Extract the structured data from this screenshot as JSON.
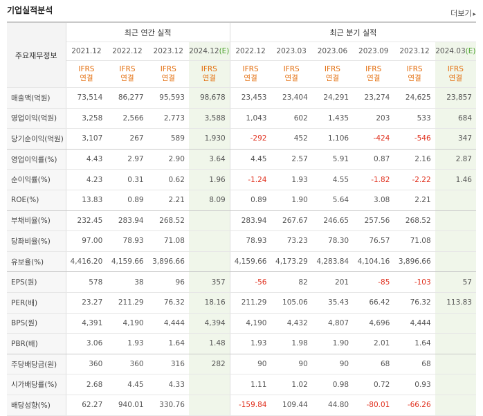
{
  "header": {
    "title": "기업실적분석",
    "more_label": "더보기",
    "more_arrow": "▸"
  },
  "table": {
    "label_head": "주요재무정보",
    "annual_group": "최근 연간 실적",
    "quarter_group": "최근 분기 실적",
    "periods": [
      {
        "label": "2021.12",
        "est": false
      },
      {
        "label": "2022.12",
        "est": false
      },
      {
        "label": "2023.12",
        "est": false
      },
      {
        "label": "2024.12",
        "est": true,
        "est_mark": "(E)"
      },
      {
        "label": "2022.12",
        "est": false
      },
      {
        "label": "2023.03",
        "est": false
      },
      {
        "label": "2023.06",
        "est": false
      },
      {
        "label": "2023.09",
        "est": false
      },
      {
        "label": "2023.12",
        "est": false
      },
      {
        "label": "2024.03",
        "est": true,
        "est_mark": "(E)"
      }
    ],
    "basis_line1": "IFRS",
    "basis_line2": "연결",
    "rows": [
      {
        "label": "매출액(억원)",
        "values": [
          "73,514",
          "86,277",
          "95,593",
          "98,678",
          "23,453",
          "23,404",
          "24,291",
          "23,274",
          "24,625",
          "23,857"
        ]
      },
      {
        "label": "영업이익(억원)",
        "values": [
          "3,258",
          "2,566",
          "2,773",
          "3,588",
          "1,043",
          "602",
          "1,435",
          "203",
          "533",
          "684"
        ]
      },
      {
        "label": "당기순이익(억원)",
        "values": [
          "3,107",
          "267",
          "589",
          "1,930",
          "-292",
          "452",
          "1,106",
          "-424",
          "-546",
          "347"
        ],
        "group_end": true
      },
      {
        "label": "영업이익률(%)",
        "values": [
          "4.43",
          "2.97",
          "2.90",
          "3.64",
          "4.45",
          "2.57",
          "5.91",
          "0.87",
          "2.16",
          "2.87"
        ]
      },
      {
        "label": "순이익률(%)",
        "values": [
          "4.23",
          "0.31",
          "0.62",
          "1.96",
          "-1.24",
          "1.93",
          "4.55",
          "-1.82",
          "-2.22",
          "1.46"
        ]
      },
      {
        "label": "ROE(%)",
        "values": [
          "13.83",
          "0.89",
          "2.21",
          "8.09",
          "0.89",
          "1.90",
          "5.64",
          "3.08",
          "2.21",
          ""
        ],
        "group_end": true
      },
      {
        "label": "부채비율(%)",
        "values": [
          "232.45",
          "283.94",
          "268.52",
          "",
          "283.94",
          "267.67",
          "246.65",
          "257.56",
          "268.52",
          ""
        ]
      },
      {
        "label": "당좌비율(%)",
        "values": [
          "97.00",
          "78.93",
          "71.08",
          "",
          "78.93",
          "73.23",
          "78.30",
          "76.57",
          "71.08",
          ""
        ]
      },
      {
        "label": "유보율(%)",
        "values": [
          "4,416.20",
          "4,159.66",
          "3,896.66",
          "",
          "4,159.66",
          "4,173.29",
          "4,283.84",
          "4,104.16",
          "3,896.66",
          ""
        ],
        "group_end": true
      },
      {
        "label": "EPS(원)",
        "values": [
          "578",
          "38",
          "96",
          "357",
          "-56",
          "82",
          "201",
          "-85",
          "-103",
          "57"
        ]
      },
      {
        "label": "PER(배)",
        "values": [
          "23.27",
          "211.29",
          "76.32",
          "18.16",
          "211.29",
          "105.06",
          "35.43",
          "66.42",
          "76.32",
          "113.83"
        ]
      },
      {
        "label": "BPS(원)",
        "values": [
          "4,391",
          "4,190",
          "4,444",
          "4,394",
          "4,190",
          "4,432",
          "4,807",
          "4,696",
          "4,444",
          ""
        ]
      },
      {
        "label": "PBR(배)",
        "values": [
          "3.06",
          "1.93",
          "1.64",
          "1.48",
          "1.93",
          "1.98",
          "1.90",
          "2.01",
          "1.64",
          ""
        ],
        "group_end": true
      },
      {
        "label": "주당배당금(원)",
        "values": [
          "360",
          "360",
          "316",
          "282",
          "90",
          "90",
          "90",
          "68",
          "68",
          ""
        ]
      },
      {
        "label": "시가배당률(%)",
        "values": [
          "2.68",
          "4.45",
          "4.33",
          "",
          "1.11",
          "1.02",
          "0.98",
          "0.72",
          "0.93",
          ""
        ]
      },
      {
        "label": "배당성향(%)",
        "values": [
          "62.27",
          "940.01",
          "330.76",
          "",
          "-159.84",
          "109.44",
          "44.80",
          "-80.01",
          "-66.26",
          ""
        ]
      }
    ]
  },
  "colors": {
    "negative": "#e0301e",
    "ifrs": "#e36c0a",
    "estimate": "#4aa02c",
    "estimate_bg": "#f0f6ea"
  }
}
